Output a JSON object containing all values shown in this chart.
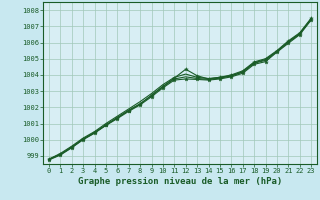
{
  "bg_color": "#c8e8f0",
  "plot_bg_color": "#d8eef4",
  "grid_color": "#a0c8b8",
  "line_color": "#1a5c28",
  "marker_color": "#1a5c28",
  "xlabel": "Graphe pression niveau de la mer (hPa)",
  "xlabel_fontsize": 6.5,
  "xlabel_color": "#1a5c28",
  "tick_color": "#1a5c28",
  "tick_fontsize": 5.0,
  "ylim": [
    998.5,
    1008.5
  ],
  "xlim": [
    -0.5,
    23.5
  ],
  "yticks": [
    999,
    1000,
    1001,
    1002,
    1003,
    1004,
    1005,
    1006,
    1007,
    1008
  ],
  "xticks": [
    0,
    1,
    2,
    3,
    4,
    5,
    6,
    7,
    8,
    9,
    10,
    11,
    12,
    13,
    14,
    15,
    16,
    17,
    18,
    19,
    20,
    21,
    22,
    23
  ],
  "series": [
    [
      998.8,
      999.1,
      999.55,
      1000.05,
      1000.45,
      1000.9,
      1001.35,
      1001.8,
      1002.2,
      1002.75,
      1003.3,
      1003.8,
      1004.35,
      1003.95,
      1003.75,
      1003.85,
      1004.0,
      1004.25,
      1004.8,
      1005.0,
      1005.5,
      1006.1,
      1006.6,
      1007.5
    ],
    [
      998.8,
      999.15,
      999.6,
      1000.1,
      1000.5,
      1001.0,
      1001.45,
      1001.9,
      1002.35,
      1002.85,
      1003.4,
      1003.85,
      1004.05,
      1003.85,
      1003.78,
      1003.85,
      1003.95,
      1004.2,
      1004.75,
      1004.95,
      1005.45,
      1006.05,
      1006.55,
      1007.45
    ],
    [
      998.75,
      999.05,
      999.5,
      1000.0,
      1000.4,
      1000.88,
      1001.3,
      1001.75,
      1002.15,
      1002.65,
      1003.2,
      1003.68,
      1003.75,
      1003.72,
      1003.68,
      1003.75,
      1003.88,
      1004.1,
      1004.65,
      1004.82,
      1005.4,
      1005.95,
      1006.48,
      1007.38
    ],
    [
      998.78,
      999.08,
      999.52,
      1000.02,
      1000.42,
      1000.92,
      1001.37,
      1001.82,
      1002.22,
      1002.72,
      1003.27,
      1003.75,
      1003.88,
      1003.78,
      1003.72,
      1003.8,
      1003.93,
      1004.17,
      1004.72,
      1004.9,
      1005.44,
      1006.02,
      1006.52,
      1007.44
    ]
  ],
  "star_series_indices": [
    0,
    2
  ],
  "star_x_positions": [
    0,
    1,
    2,
    3,
    4,
    5,
    6,
    7,
    8,
    9,
    10,
    11,
    12,
    13,
    14,
    15,
    16,
    17,
    18,
    19,
    20,
    21,
    22,
    23
  ]
}
